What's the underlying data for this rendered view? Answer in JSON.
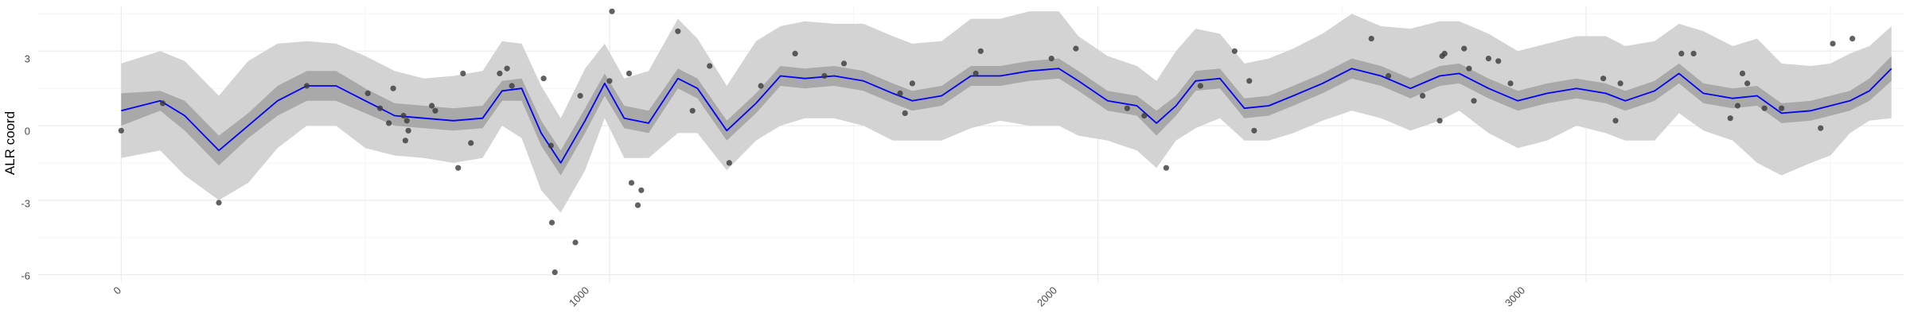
{
  "chart_data": {
    "type": "line",
    "title": "",
    "xlabel": "",
    "ylabel": "ALR coord",
    "xlim": [
      -170,
      3650
    ],
    "ylim": [
      -6.3,
      4.8
    ],
    "x_ticks": [
      0,
      1000,
      2000,
      3000
    ],
    "x_tick_labels": [
      "0",
      "1000",
      "2000",
      "3000"
    ],
    "y_ticks": [
      -6,
      -3,
      0,
      3
    ],
    "y_tick_labels": [
      "-6",
      "-3",
      "0",
      "3"
    ],
    "grid": true,
    "legend": "none",
    "colors": {
      "outer_band": "#d3d3d3",
      "inner_band": "#a9a9a9",
      "line": "#0000ff",
      "points": "#3a3a3a",
      "grid_major": "#ebebeb",
      "grid_minor": "#f5f5f5"
    },
    "series": [
      {
        "type": "line",
        "x": [
          0,
          80,
          130,
          200,
          260,
          320,
          380,
          440,
          500,
          560,
          620,
          680,
          740,
          780,
          820,
          860,
          900,
          950,
          990,
          1030,
          1080,
          1140,
          1180,
          1240,
          1300,
          1350,
          1400,
          1460,
          1520,
          1580,
          1620,
          1680,
          1740,
          1800,
          1860,
          1920,
          1960,
          2020,
          2080,
          2120,
          2160,
          2200,
          2250,
          2300,
          2350,
          2400,
          2460,
          2520,
          2580,
          2640,
          2700,
          2740,
          2800,
          2860,
          2920,
          2980,
          3040,
          3080,
          3140,
          3190,
          3240,
          3300,
          3350,
          3400,
          3460,
          3500,
          3540,
          3580,
          3625
        ],
        "y": [
          0.6,
          1.0,
          0.4,
          -1.0,
          0.0,
          1.0,
          1.6,
          1.6,
          1.0,
          0.4,
          0.3,
          0.2,
          0.3,
          1.4,
          1.5,
          -0.3,
          -1.5,
          0.2,
          1.7,
          0.3,
          0.1,
          1.9,
          1.5,
          -0.2,
          0.9,
          2.0,
          1.9,
          2.0,
          1.8,
          1.3,
          1.0,
          1.2,
          2.0,
          2.0,
          2.2,
          2.3,
          1.8,
          1.0,
          0.8,
          0.1,
          0.8,
          1.8,
          1.9,
          0.7,
          0.8,
          1.2,
          1.7,
          2.3,
          2.0,
          1.5,
          2.0,
          2.1,
          1.5,
          1.0,
          1.3,
          1.5,
          1.3,
          1.0,
          1.4,
          2.1,
          1.3,
          1.1,
          1.2,
          0.5,
          0.6,
          0.8,
          1.0,
          1.4,
          2.3
        ]
      },
      {
        "type": "band",
        "x": [
          0,
          80,
          130,
          200,
          260,
          320,
          380,
          440,
          500,
          560,
          620,
          680,
          740,
          780,
          820,
          860,
          900,
          950,
          990,
          1030,
          1080,
          1140,
          1180,
          1240,
          1300,
          1350,
          1400,
          1460,
          1520,
          1580,
          1620,
          1680,
          1740,
          1800,
          1860,
          1920,
          1960,
          2020,
          2080,
          2120,
          2160,
          2200,
          2250,
          2300,
          2350,
          2400,
          2460,
          2520,
          2580,
          2640,
          2700,
          2740,
          2800,
          2860,
          2920,
          2980,
          3040,
          3080,
          3140,
          3190,
          3240,
          3300,
          3350,
          3400,
          3460,
          3500,
          3540,
          3580,
          3625
        ],
        "lower": [
          0.0,
          0.6,
          -0.2,
          -1.6,
          -0.5,
          0.4,
          1.0,
          1.0,
          0.5,
          0.0,
          -0.1,
          -0.2,
          -0.1,
          1.0,
          1.0,
          -0.8,
          -2.0,
          -0.3,
          1.2,
          -0.1,
          -0.3,
          1.5,
          1.1,
          -0.6,
          0.5,
          1.6,
          1.5,
          1.6,
          1.4,
          0.9,
          0.6,
          0.8,
          1.6,
          1.6,
          1.8,
          1.9,
          1.4,
          0.6,
          0.4,
          -0.4,
          0.4,
          1.4,
          1.5,
          0.3,
          0.4,
          0.8,
          1.3,
          1.9,
          1.6,
          1.1,
          1.6,
          1.7,
          1.1,
          0.6,
          0.9,
          1.1,
          0.9,
          0.6,
          1.0,
          1.7,
          0.9,
          0.7,
          0.8,
          0.1,
          0.2,
          0.4,
          0.6,
          1.0,
          1.8
        ],
        "upper": [
          1.3,
          1.4,
          1.0,
          -0.4,
          0.5,
          1.6,
          2.2,
          2.2,
          1.5,
          0.9,
          0.8,
          0.7,
          0.8,
          1.8,
          1.9,
          0.2,
          -1.0,
          0.7,
          2.1,
          0.8,
          0.6,
          2.3,
          1.9,
          0.2,
          1.3,
          2.4,
          2.3,
          2.4,
          2.2,
          1.7,
          1.4,
          1.6,
          2.4,
          2.4,
          2.6,
          2.7,
          2.2,
          1.4,
          1.2,
          0.6,
          1.2,
          2.2,
          2.3,
          1.1,
          1.2,
          1.6,
          2.1,
          2.7,
          2.4,
          1.9,
          2.4,
          2.5,
          1.9,
          1.4,
          1.7,
          1.9,
          1.7,
          1.4,
          1.8,
          2.5,
          1.7,
          1.5,
          1.6,
          0.9,
          1.0,
          1.2,
          1.4,
          1.9,
          2.8
        ]
      },
      {
        "type": "band",
        "x": [
          0,
          80,
          130,
          200,
          260,
          320,
          380,
          440,
          500,
          560,
          620,
          680,
          740,
          780,
          820,
          860,
          900,
          950,
          990,
          1030,
          1080,
          1140,
          1180,
          1240,
          1300,
          1350,
          1400,
          1460,
          1520,
          1580,
          1620,
          1680,
          1740,
          1800,
          1860,
          1920,
          1960,
          2020,
          2080,
          2120,
          2160,
          2200,
          2250,
          2300,
          2350,
          2400,
          2460,
          2520,
          2580,
          2640,
          2700,
          2740,
          2800,
          2860,
          2920,
          2980,
          3040,
          3080,
          3140,
          3190,
          3240,
          3300,
          3350,
          3400,
          3460,
          3500,
          3540,
          3580,
          3625
        ],
        "lower": [
          -1.3,
          -1.0,
          -2.0,
          -3.0,
          -2.3,
          -0.9,
          0.0,
          0.0,
          -0.9,
          -1.2,
          -1.3,
          -1.5,
          -1.3,
          0.0,
          -0.5,
          -2.6,
          -3.5,
          -1.8,
          0.3,
          -1.3,
          -1.3,
          -0.3,
          -0.3,
          -1.8,
          -0.6,
          0.0,
          0.3,
          0.3,
          0.0,
          -0.6,
          -0.6,
          -0.6,
          -0.1,
          0.2,
          0.0,
          0.0,
          -0.4,
          -0.6,
          -1.0,
          -1.7,
          -0.6,
          -0.1,
          0.3,
          -0.6,
          -0.6,
          -0.3,
          0.2,
          0.6,
          0.3,
          -0.2,
          0.2,
          0.6,
          -0.3,
          -0.9,
          -0.6,
          0.0,
          -0.3,
          -0.6,
          -0.6,
          0.5,
          -0.2,
          -0.6,
          -1.5,
          -2.0,
          -1.5,
          -1.2,
          -0.3,
          0.2,
          0.3
        ],
        "upper": [
          2.5,
          3.0,
          2.6,
          1.2,
          2.6,
          3.3,
          3.4,
          3.3,
          2.8,
          2.2,
          1.9,
          2.0,
          2.2,
          3.4,
          3.3,
          1.6,
          0.3,
          2.3,
          3.3,
          1.9,
          2.2,
          4.3,
          3.5,
          1.6,
          3.4,
          4.0,
          4.2,
          4.1,
          4.1,
          3.6,
          3.3,
          3.4,
          4.3,
          4.3,
          4.6,
          4.6,
          3.6,
          2.8,
          2.4,
          1.8,
          3.0,
          3.9,
          3.7,
          2.5,
          2.7,
          3.1,
          3.7,
          4.5,
          4.0,
          3.9,
          4.2,
          4.2,
          3.7,
          3.0,
          3.3,
          3.6,
          3.6,
          3.2,
          3.4,
          4.1,
          3.8,
          3.2,
          3.5,
          2.5,
          2.4,
          2.5,
          2.9,
          3.2,
          4.0
        ]
      },
      {
        "type": "scatter",
        "x": [
          0,
          85,
          200,
          380,
          505,
          530,
          548,
          557,
          578,
          582,
          585,
          588,
          636,
          643,
          690,
          700,
          716,
          775,
          790,
          800,
          865,
          880,
          882,
          888,
          930,
          940,
          1000,
          1005,
          1040,
          1045,
          1058,
          1065,
          1140,
          1170,
          1205,
          1245,
          1310,
          1380,
          1440,
          1480,
          1595,
          1605,
          1620,
          1750,
          1760,
          1905,
          1955,
          2060,
          2095,
          2140,
          2210,
          2280,
          2310,
          2320,
          2560,
          2595,
          2665,
          2700,
          2705,
          2710,
          2750,
          2760,
          2770,
          2800,
          2820,
          2845,
          3035,
          3060,
          3070,
          3195,
          3220,
          3295,
          3310,
          3320,
          3330,
          3365,
          3400,
          3480,
          3505,
          3545
        ],
        "y": [
          -0.2,
          0.9,
          -3.1,
          1.6,
          1.3,
          0.7,
          0.1,
          1.5,
          0.4,
          -0.6,
          0.2,
          -0.2,
          0.8,
          0.6,
          -1.7,
          2.1,
          -0.7,
          2.1,
          2.3,
          1.6,
          1.9,
          -0.8,
          -3.9,
          -5.9,
          -4.7,
          1.2,
          1.8,
          4.6,
          2.1,
          -2.3,
          -3.2,
          -2.6,
          3.8,
          0.6,
          2.4,
          -1.5,
          1.6,
          2.9,
          2.0,
          2.5,
          1.3,
          0.5,
          1.7,
          2.1,
          3.0,
          2.7,
          3.1,
          0.7,
          0.4,
          -1.7,
          1.6,
          3.0,
          1.8,
          -0.2,
          3.5,
          2.0,
          1.2,
          0.2,
          2.8,
          2.9,
          3.1,
          2.3,
          1.0,
          2.7,
          2.6,
          1.7,
          1.9,
          0.2,
          1.7,
          2.9,
          2.9,
          0.3,
          0.8,
          2.1,
          1.7,
          0.7,
          0.7,
          -0.1,
          3.3,
          3.5
        ]
      }
    ]
  },
  "axis": {
    "ylabel": "ALR coord",
    "y_tick_labels": [
      "-6",
      "-3",
      "0",
      "3"
    ],
    "x_tick_labels": [
      "0",
      "1000",
      "2000",
      "3000"
    ]
  }
}
